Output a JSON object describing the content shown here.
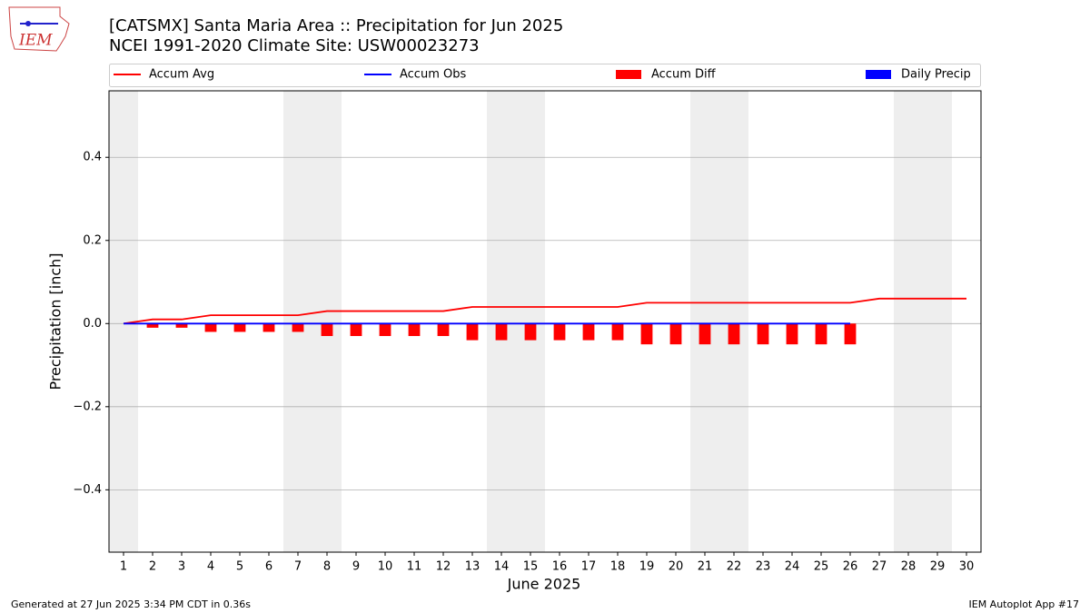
{
  "chart_data": {
    "type": "combo",
    "title": "[CATSMX] Santa Maria Area :: Precipitation for Jun 2025",
    "subtitle": "NCEI 1991-2020 Climate Site: USW00023273",
    "logo_text": "IEM",
    "xlabel": "June 2025",
    "ylabel": "Precipitation [inch]",
    "footer_left": "Generated at 27 Jun 2025 3:34 PM CDT in 0.36s",
    "footer_right": "IEM Autoplot App #17",
    "x": [
      1,
      2,
      3,
      4,
      5,
      6,
      7,
      8,
      9,
      10,
      11,
      12,
      13,
      14,
      15,
      16,
      17,
      18,
      19,
      20,
      21,
      22,
      23,
      24,
      25,
      26,
      27,
      28,
      29,
      30
    ],
    "xlim": [
      0.5,
      30.5
    ],
    "xticks": [
      1,
      2,
      3,
      4,
      5,
      6,
      7,
      8,
      9,
      10,
      11,
      12,
      13,
      14,
      15,
      16,
      17,
      18,
      19,
      20,
      21,
      22,
      23,
      24,
      25,
      26,
      27,
      28,
      29,
      30
    ],
    "ylim": [
      -0.55,
      0.56
    ],
    "yticks": [
      {
        "value": -0.4,
        "label": "−0.4"
      },
      {
        "value": -0.2,
        "label": "−0.2"
      },
      {
        "value": 0,
        "label": "0.0"
      },
      0.2,
      0.4
    ],
    "grid": true,
    "shaded_ranges": [
      [
        0.5,
        1.5
      ],
      [
        6.5,
        8.5
      ],
      [
        13.5,
        15.5
      ],
      [
        20.5,
        22.5
      ],
      [
        27.5,
        29.5
      ]
    ],
    "shade_color": "#eeeeee",
    "series": [
      {
        "name": "Accum Avg",
        "kind": "line",
        "color": "#ff0000",
        "values": [
          0,
          0.01,
          0.01,
          0.02,
          0.02,
          0.02,
          0.02,
          0.03,
          0.03,
          0.03,
          0.03,
          0.03,
          0.04,
          0.04,
          0.04,
          0.04,
          0.04,
          0.04,
          0.05,
          0.05,
          0.05,
          0.05,
          0.05,
          0.05,
          0.05,
          0.05,
          0.06,
          0.06,
          0.06,
          0.06
        ]
      },
      {
        "name": "Accum Obs",
        "kind": "line",
        "color": "#0000ff",
        "values": [
          0,
          0,
          0,
          0,
          0,
          0,
          0,
          0,
          0,
          0,
          0,
          0,
          0,
          0,
          0,
          0,
          0,
          0,
          0,
          0,
          0,
          0,
          0,
          0,
          0,
          0,
          null,
          null,
          null,
          null
        ]
      },
      {
        "name": "Accum Diff",
        "kind": "bar",
        "color": "#ff0000",
        "values": [
          0,
          -0.01,
          -0.01,
          -0.02,
          -0.02,
          -0.02,
          -0.02,
          -0.03,
          -0.03,
          -0.03,
          -0.03,
          -0.03,
          -0.04,
          -0.04,
          -0.04,
          -0.04,
          -0.04,
          -0.04,
          -0.05,
          -0.05,
          -0.05,
          -0.05,
          -0.05,
          -0.05,
          -0.05,
          -0.05,
          null,
          null,
          null,
          null
        ]
      },
      {
        "name": "Daily Precip",
        "kind": "bar",
        "color": "#0000ff",
        "values": [
          0,
          0,
          0,
          0,
          0,
          0,
          0,
          0,
          0,
          0,
          0,
          0,
          0,
          0,
          0,
          0,
          0,
          0,
          0,
          0,
          0,
          0,
          0,
          0,
          0,
          0,
          null,
          null,
          null,
          null
        ]
      }
    ]
  }
}
